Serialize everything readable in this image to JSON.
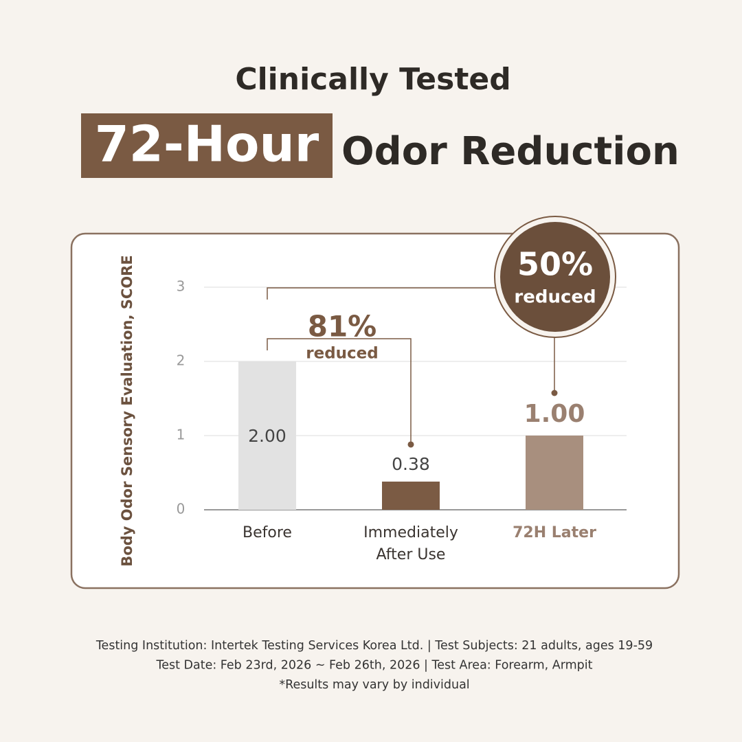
{
  "header": {
    "title": "Clinically Tested",
    "highlight": "72-Hour",
    "headline": "Odor Reduction"
  },
  "chart_data": {
    "type": "bar",
    "y_label": "Body Odor Sensory Evaluation, SCORE",
    "categories": [
      "Before",
      "Immediately After Use",
      "72H Later"
    ],
    "values": [
      2,
      0.38,
      1
    ],
    "value_labels": [
      "2.00",
      "0.38",
      "1.00"
    ],
    "colors": [
      "#e2e2e2",
      "#7b5b44",
      "#a88f7e"
    ],
    "ylim": [
      0,
      3
    ],
    "yticks": [
      0,
      1,
      2,
      3
    ],
    "grid": true,
    "annotations": [
      {
        "value": "81%",
        "label": "reduced"
      },
      {
        "value": "50%",
        "label": "reduced"
      }
    ]
  },
  "footer": {
    "lines": [
      "Testing Institution: Intertek Testing Services Korea Ltd.  |  Test Subjects: 21 adults, ages 19-59",
      "Test Date: Feb 23rd, 2026 ~ Feb 26th, 2026  |  Test Area: Forearm, Armpit",
      "*Results may vary by individual"
    ]
  }
}
